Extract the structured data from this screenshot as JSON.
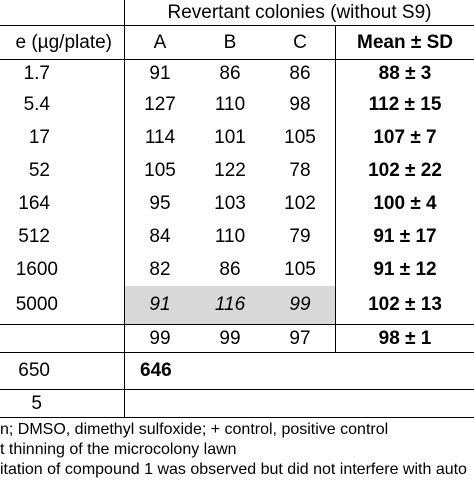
{
  "header": {
    "group": "Revertant colonies (without S9)",
    "dose": "e (µg/plate)",
    "a": "A",
    "b": "B",
    "c": "C",
    "mean": "Mean ± SD"
  },
  "rows": [
    {
      "dose": "1.7",
      "a": "91",
      "b": "86",
      "c": "86",
      "mean": "88 ± 3"
    },
    {
      "dose": "5.4",
      "a": "127",
      "b": "110",
      "c": "98",
      "mean": "112 ± 15"
    },
    {
      "dose": "17",
      "a": "114",
      "b": "101",
      "c": "105",
      "mean": "107 ± 7"
    },
    {
      "dose": "52",
      "a": "105",
      "b": "122",
      "c": "78",
      "mean": "102 ± 22"
    },
    {
      "dose": "164",
      "a": "95",
      "b": "103",
      "c": "102",
      "mean": "100 ± 4"
    },
    {
      "dose": "512",
      "a": "84",
      "b": "110",
      "c": "79",
      "mean": "91 ± 17"
    },
    {
      "dose": "1600",
      "a": "82",
      "b": "86",
      "c": "105",
      "mean": "91 ± 12"
    },
    {
      "dose": "5000",
      "a": "91",
      "b": "116",
      "c": "99",
      "mean": "102 ± 13"
    }
  ],
  "control_row": {
    "a": "99",
    "b": "99",
    "c": "97",
    "mean": "98 ± 1"
  },
  "positive_row": {
    "dose": "650",
    "value": "646"
  },
  "last_row": {
    "dose": "5"
  },
  "footnotes": [
    "n; DMSO, dimethyl sulfoxide; + control, positive control",
    "t thinning of the microcolony lawn",
    "itation of compound 1 was observed but did not interfere with auto"
  ],
  "colors": {
    "highlight": "#d8d8d8"
  }
}
